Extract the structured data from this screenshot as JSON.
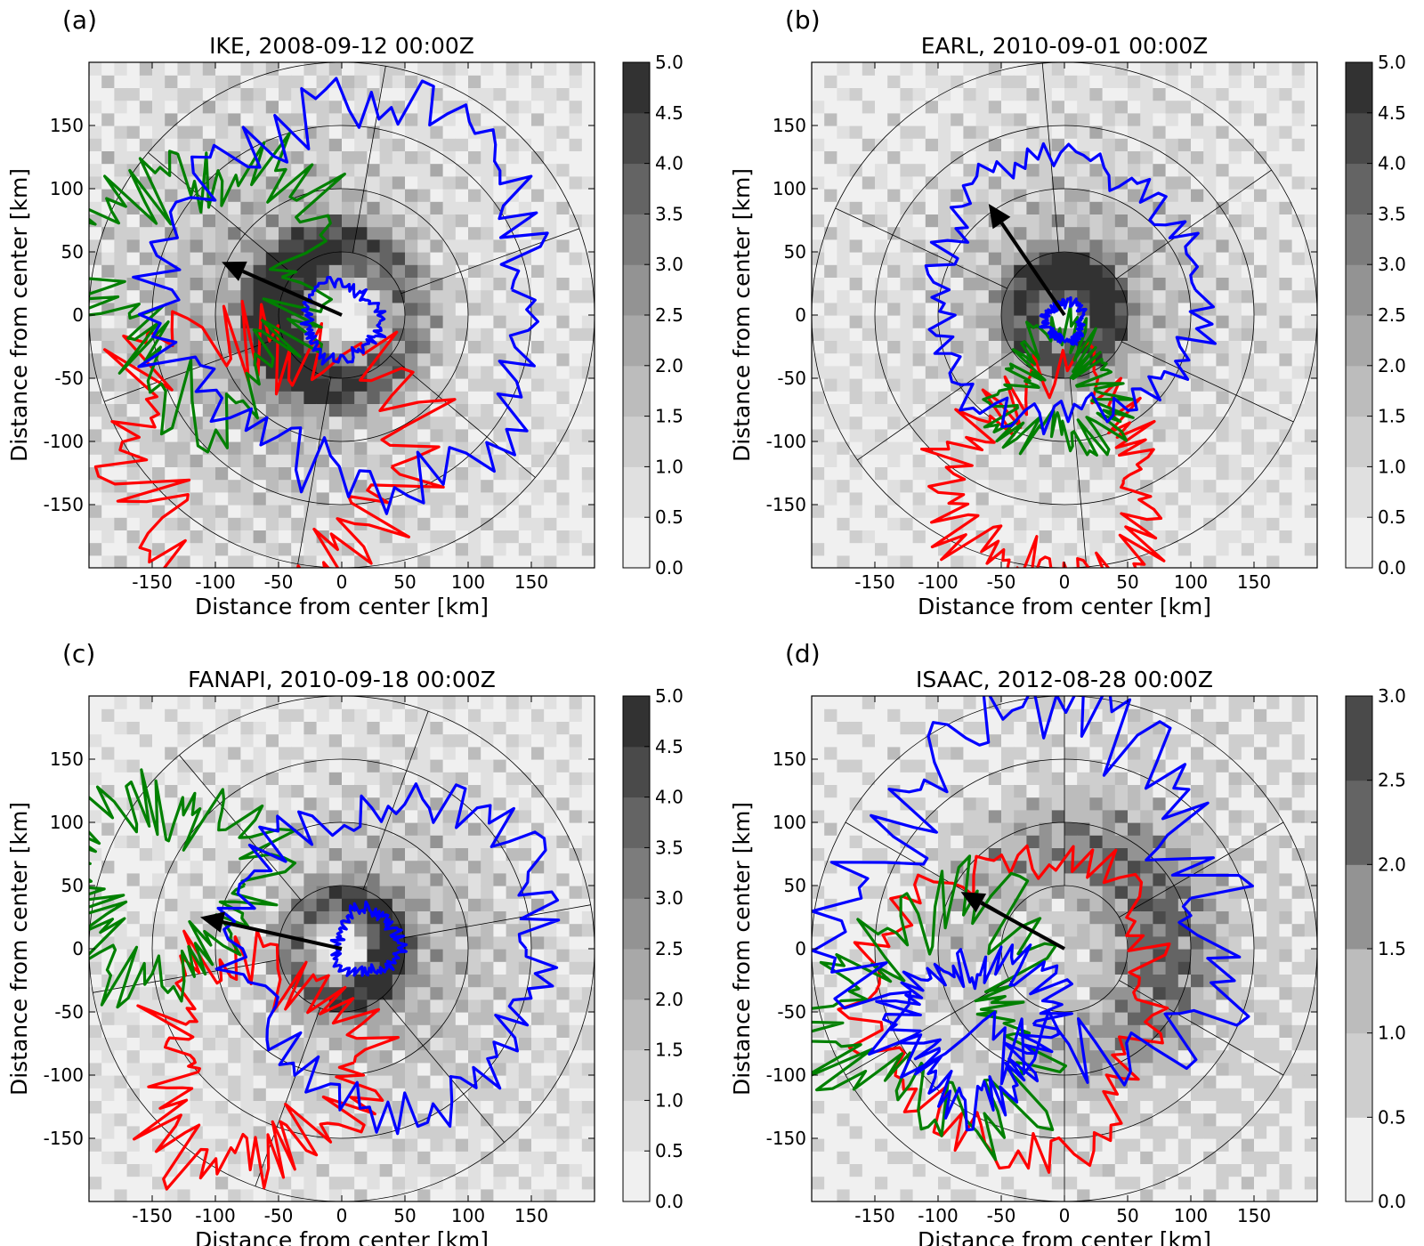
{
  "chart_data": [
    {
      "type": "heatmap",
      "panel_label": "(a)",
      "title": "IKE, 2008-09-12 00:00Z",
      "xlabel": "Distance from center [km]",
      "ylabel": "Distance from center [km]",
      "xlim": [
        -200,
        200
      ],
      "ylim": [
        -200,
        200
      ],
      "xticks": [
        -150,
        -100,
        -50,
        0,
        50,
        100,
        150
      ],
      "yticks": [
        -150,
        -100,
        -50,
        0,
        50,
        100,
        150
      ],
      "range_rings_km": [
        50,
        100,
        150,
        200
      ],
      "radial_spokes_deg": [
        20,
        80,
        140,
        200,
        260,
        320
      ],
      "colorbar": {
        "ticks": [
          "0.0",
          "0.5",
          "1.0",
          "1.5",
          "2.0",
          "2.5",
          "3.0",
          "3.5",
          "4.0",
          "4.5",
          "5.0"
        ],
        "max": 5.0
      },
      "field": {
        "eye_radius_km": 25,
        "eyewall_radius_km": 55,
        "peak": 4.8,
        "width_km": 30,
        "outer_decay_km": 140,
        "asymmetry": 0.35,
        "asym_dir_deg": 180
      },
      "arrow": {
        "from": [
          0,
          0
        ],
        "to": [
          -95,
          42
        ]
      },
      "contours": {
        "blue": {
          "center": [
            10,
            20
          ],
          "radius_km": 150,
          "noise_km": 25,
          "seed": 11
        },
        "green": {
          "center": [
            -110,
            30
          ],
          "radius_km": 90,
          "noise_km": 35,
          "seed": 12
        },
        "red": {
          "center": [
            -60,
            -120
          ],
          "radius_km": 110,
          "noise_km": 35,
          "seed": 13
        },
        "blue_inner": {
          "center": [
            0,
            -5
          ],
          "radius_km": 30,
          "noise_km": 6,
          "seed": 14
        }
      }
    },
    {
      "type": "heatmap",
      "panel_label": "(b)",
      "title": "EARL, 2010-09-01 00:00Z",
      "xlabel": "Distance from center [km]",
      "ylabel": "Distance from center [km]",
      "xlim": [
        -200,
        200
      ],
      "ylim": [
        -200,
        200
      ],
      "xticks": [
        -150,
        -100,
        -50,
        0,
        50,
        100,
        150
      ],
      "yticks": [
        -150,
        -100,
        -50,
        0,
        50,
        100,
        150
      ],
      "range_rings_km": [
        50,
        100,
        150,
        200
      ],
      "radial_spokes_deg": [
        35,
        95,
        155,
        215,
        275,
        335
      ],
      "colorbar": {
        "ticks": [
          "0.0",
          "0.5",
          "1.0",
          "1.5",
          "2.0",
          "2.5",
          "3.0",
          "3.5",
          "4.0",
          "4.5",
          "5.0"
        ],
        "max": 5.0
      },
      "field": {
        "eye_radius_km": 12,
        "eyewall_radius_km": 35,
        "peak": 5.0,
        "width_km": 25,
        "outer_decay_km": 110,
        "asymmetry": 0.2,
        "asym_dir_deg": 70
      },
      "arrow": {
        "from": [
          0,
          0
        ],
        "to": [
          -60,
          88
        ]
      },
      "contours": {
        "blue": {
          "center": [
            0,
            20
          ],
          "radius_km": 105,
          "noise_km": 15,
          "seed": 21
        },
        "green": {
          "center": [
            -5,
            -60
          ],
          "radius_km": 40,
          "noise_km": 20,
          "seed": 22
        },
        "red": {
          "center": [
            -10,
            -130
          ],
          "radius_km": 80,
          "noise_km": 25,
          "seed": 23
        },
        "blue_inner": {
          "center": [
            0,
            -5
          ],
          "radius_km": 15,
          "noise_km": 4,
          "seed": 24
        }
      }
    },
    {
      "type": "heatmap",
      "panel_label": "(c)",
      "title": "FANAPI, 2010-09-18 00:00Z",
      "xlabel": "Distance from center [km]",
      "ylabel": "Distance from center [km]",
      "xlim": [
        -200,
        200
      ],
      "ylim": [
        -200,
        200
      ],
      "xticks": [
        -150,
        -100,
        -50,
        0,
        50,
        100,
        150
      ],
      "yticks": [
        -150,
        -100,
        -50,
        0,
        50,
        100,
        150
      ],
      "range_rings_km": [
        50,
        100,
        150,
        200
      ],
      "radial_spokes_deg": [
        10,
        70,
        130,
        190,
        250,
        310
      ],
      "colorbar": {
        "ticks": [
          "0.0",
          "0.5",
          "1.0",
          "1.5",
          "2.0",
          "2.5",
          "3.0",
          "3.5",
          "4.0",
          "4.5",
          "5.0"
        ],
        "max": 5.0
      },
      "field": {
        "eye_radius_km": 20,
        "eyewall_radius_km": 40,
        "peak": 4.6,
        "width_km": 22,
        "outer_decay_km": 120,
        "asymmetry": 0.3,
        "asym_dir_deg": 0
      },
      "arrow": {
        "from": [
          0,
          0
        ],
        "to": [
          -112,
          25
        ]
      },
      "contours": {
        "blue": {
          "center": [
            40,
            0
          ],
          "radius_km": 120,
          "noise_km": 20,
          "seed": 31
        },
        "green": {
          "center": [
            -140,
            50
          ],
          "radius_km": 70,
          "noise_km": 30,
          "seed": 32
        },
        "red": {
          "center": [
            -70,
            -90
          ],
          "radius_km": 80,
          "noise_km": 30,
          "seed": 33
        },
        "blue_inner": {
          "center": [
            20,
            5
          ],
          "radius_km": 25,
          "noise_km": 5,
          "seed": 34
        }
      }
    },
    {
      "type": "heatmap",
      "panel_label": "(d)",
      "title": "ISAAC, 2012-08-28 00:00Z",
      "xlabel": "Distance from center [km]",
      "ylabel": "Distance from center [km]",
      "xlim": [
        -200,
        200
      ],
      "ylim": [
        -200,
        200
      ],
      "xticks": [
        -150,
        -100,
        -50,
        0,
        50,
        100,
        150
      ],
      "yticks": [
        -150,
        -100,
        -50,
        0,
        50,
        100,
        150
      ],
      "range_rings_km": [
        50,
        100,
        150,
        200
      ],
      "radial_spokes_deg": [
        30,
        90,
        150,
        210,
        270,
        330
      ],
      "colorbar": {
        "ticks": [
          "0.0",
          "0.5",
          "1.0",
          "1.5",
          "2.0",
          "2.5",
          "3.0"
        ],
        "max": 3.0
      },
      "field": {
        "eye_radius_km": 0,
        "eyewall_radius_km": 80,
        "peak": 1.6,
        "width_km": 60,
        "outer_decay_km": 220,
        "asymmetry": 0.4,
        "asym_dir_deg": 20
      },
      "arrow": {
        "from": [
          0,
          0
        ],
        "to": [
          -82,
          45
        ]
      },
      "contours": {
        "blue": {
          "center": [
            -20,
            40
          ],
          "radius_km": 140,
          "noise_km": 35,
          "seed": 41
        },
        "green": {
          "center": [
            -100,
            -50
          ],
          "radius_km": 80,
          "noise_km": 35,
          "seed": 42
        },
        "red": {
          "center": [
            -40,
            -40
          ],
          "radius_km": 115,
          "noise_km": 20,
          "seed": 43
        },
        "blue_inner": {
          "center": [
            -70,
            -60
          ],
          "radius_km": 55,
          "noise_km": 20,
          "seed": 44
        }
      }
    }
  ]
}
